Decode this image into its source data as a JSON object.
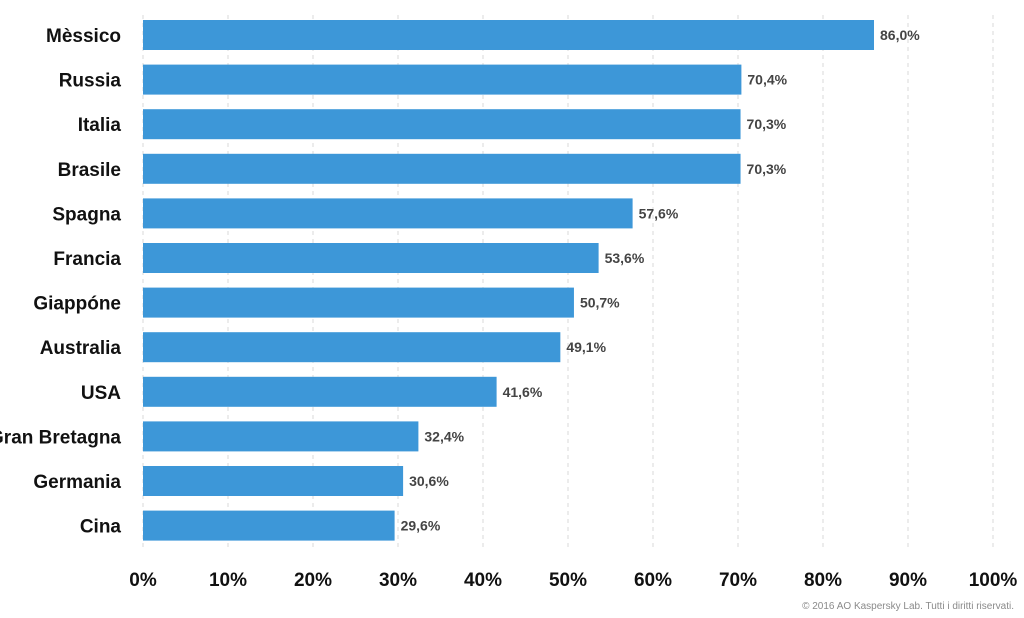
{
  "chart_data": {
    "type": "bar",
    "orientation": "horizontal",
    "categories": [
      "Mèssico",
      "Russia",
      "Italia",
      "Brasile",
      "Spagna",
      "Francia",
      "Giappóne",
      "Australia",
      "USA",
      "Gran Bretagna",
      "Germania",
      "Cina"
    ],
    "values": [
      86.0,
      70.4,
      70.3,
      70.3,
      57.6,
      53.6,
      50.7,
      49.1,
      41.6,
      32.4,
      30.6,
      29.6
    ],
    "value_labels": [
      "86,0%",
      "70,4%",
      "70,3%",
      "70,3%",
      "57,6%",
      "53,6%",
      "50,7%",
      "49,1%",
      "41,6%",
      "32,4%",
      "30,6%",
      "29,6%"
    ],
    "xlim": [
      0,
      100
    ],
    "xticks": [
      0,
      10,
      20,
      30,
      40,
      50,
      60,
      70,
      80,
      90,
      100
    ],
    "xtick_labels": [
      "0%",
      "10%",
      "20%",
      "30%",
      "40%",
      "50%",
      "60%",
      "70%",
      "80%",
      "90%",
      "100%"
    ],
    "grid": "vertical-dashed",
    "bar_color": "#3d97d8",
    "grid_color": "#d9d9d9"
  },
  "footer": {
    "copyright": "© 2016 AO Kaspersky Lab. Tutti i diritti riservati."
  }
}
